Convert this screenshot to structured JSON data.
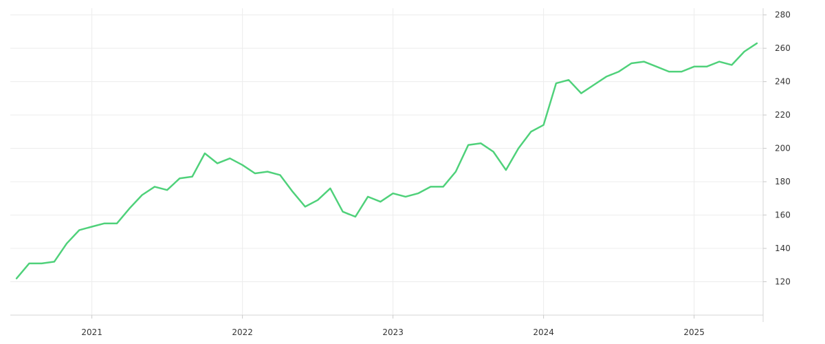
{
  "chart_data": {
    "type": "line",
    "title": "",
    "xlabel": "",
    "ylabel": "",
    "x_ticks": [
      "2021",
      "2022",
      "2023",
      "2024",
      "2025"
    ],
    "y_ticks": [
      120,
      140,
      160,
      180,
      200,
      220,
      240,
      260,
      280
    ],
    "y_axis_side": "right",
    "xlim": [
      "2020-07",
      "2025-06"
    ],
    "ylim": [
      100,
      284
    ],
    "grid": true,
    "legend": "none",
    "series": [
      {
        "color": "#4fd17a",
        "x": [
          "2020-07",
          "2020-08",
          "2020-09",
          "2020-10",
          "2020-11",
          "2020-12",
          "2021-01",
          "2021-02",
          "2021-03",
          "2021-04",
          "2021-05",
          "2021-06",
          "2021-07",
          "2021-08",
          "2021-09",
          "2021-10",
          "2021-11",
          "2021-12",
          "2022-01",
          "2022-02",
          "2022-03",
          "2022-04",
          "2022-05",
          "2022-06",
          "2022-07",
          "2022-08",
          "2022-09",
          "2022-10",
          "2022-11",
          "2022-12",
          "2023-01",
          "2023-02",
          "2023-03",
          "2023-04",
          "2023-05",
          "2023-06",
          "2023-07",
          "2023-08",
          "2023-09",
          "2023-10",
          "2023-11",
          "2023-12",
          "2024-01",
          "2024-02",
          "2024-03",
          "2024-04",
          "2024-05",
          "2024-06",
          "2024-07",
          "2024-08",
          "2024-09",
          "2024-10",
          "2024-11",
          "2024-12",
          "2025-01",
          "2025-02",
          "2025-03",
          "2025-04",
          "2025-05",
          "2025-06"
        ],
        "values": [
          122,
          131,
          131,
          132,
          143,
          151,
          153,
          155,
          155,
          164,
          172,
          177,
          175,
          182,
          183,
          197,
          191,
          194,
          190,
          185,
          186,
          184,
          174,
          165,
          169,
          176,
          162,
          159,
          171,
          168,
          173,
          171,
          173,
          177,
          177,
          186,
          202,
          203,
          198,
          187,
          200,
          210,
          214,
          239,
          241,
          233,
          238,
          243,
          246,
          251,
          252,
          249,
          246,
          246,
          249,
          249,
          252,
          250,
          258,
          263
        ]
      }
    ]
  }
}
